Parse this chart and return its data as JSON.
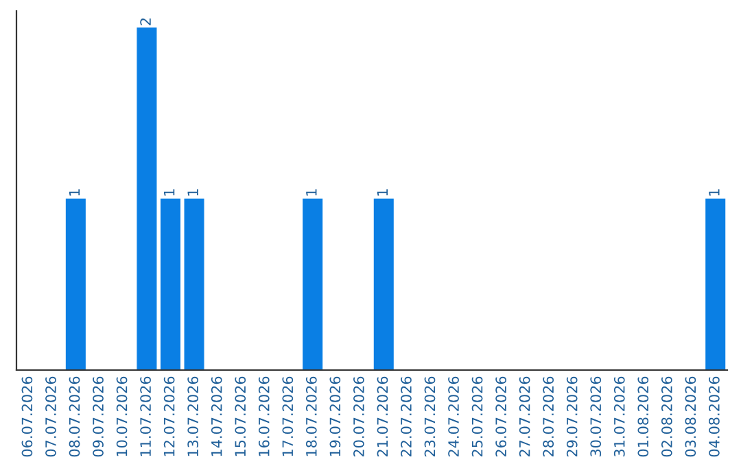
{
  "chart_data": {
    "type": "bar",
    "categories": [
      "06.07.2026",
      "07.07.2026",
      "08.07.2026",
      "09.07.2026",
      "10.07.2026",
      "11.07.2026",
      "12.07.2026",
      "13.07.2026",
      "14.07.2026",
      "15.07.2026",
      "16.07.2026",
      "17.07.2026",
      "18.07.2026",
      "19.07.2026",
      "20.07.2026",
      "21.07.2026",
      "22.07.2026",
      "23.07.2026",
      "24.07.2026",
      "25.07.2026",
      "26.07.2026",
      "27.07.2026",
      "28.07.2026",
      "29.07.2026",
      "30.07.2026",
      "31.07.2026",
      "01.08.2026",
      "02.08.2026",
      "03.08.2026",
      "04.08.2026"
    ],
    "values": [
      0,
      0,
      1,
      0,
      0,
      2,
      1,
      1,
      0,
      0,
      0,
      0,
      1,
      0,
      0,
      1,
      0,
      0,
      0,
      0,
      0,
      0,
      0,
      0,
      0,
      0,
      0,
      0,
      0,
      1
    ],
    "value_labels": [
      null,
      null,
      "1",
      null,
      null,
      "2",
      "1",
      "1",
      null,
      null,
      null,
      null,
      "1",
      null,
      null,
      "1",
      null,
      null,
      null,
      null,
      null,
      null,
      null,
      null,
      null,
      null,
      null,
      null,
      null,
      "1"
    ],
    "color": "#0a7fe4",
    "ylim": [
      0,
      2.1
    ],
    "tick_labels": "x",
    "grid": false,
    "legend": false
  }
}
